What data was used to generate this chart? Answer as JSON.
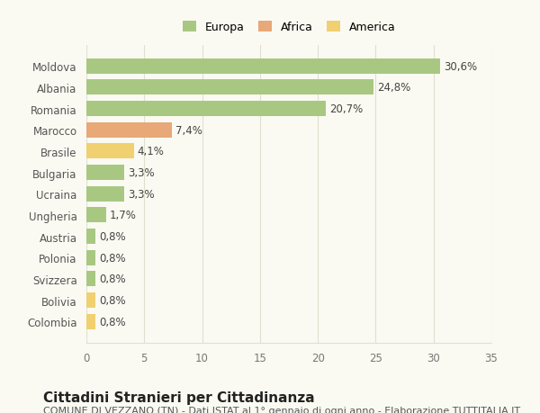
{
  "categories": [
    "Moldova",
    "Albania",
    "Romania",
    "Marocco",
    "Brasile",
    "Bulgaria",
    "Ucraina",
    "Ungheria",
    "Austria",
    "Polonia",
    "Svizzera",
    "Bolivia",
    "Colombia"
  ],
  "values": [
    30.6,
    24.8,
    20.7,
    7.4,
    4.1,
    3.3,
    3.3,
    1.7,
    0.8,
    0.8,
    0.8,
    0.8,
    0.8
  ],
  "labels": [
    "30,6%",
    "24,8%",
    "20,7%",
    "7,4%",
    "4,1%",
    "3,3%",
    "3,3%",
    "1,7%",
    "0,8%",
    "0,8%",
    "0,8%",
    "0,8%",
    "0,8%"
  ],
  "colors": [
    "#a8c882",
    "#a8c882",
    "#a8c882",
    "#e8a878",
    "#f0d070",
    "#a8c882",
    "#a8c882",
    "#a8c882",
    "#a8c882",
    "#a8c882",
    "#a8c882",
    "#f0d070",
    "#f0d070"
  ],
  "legend_labels": [
    "Europa",
    "Africa",
    "America"
  ],
  "legend_colors": [
    "#a8c882",
    "#e8a878",
    "#f0d070"
  ],
  "title": "Cittadini Stranieri per Cittadinanza",
  "subtitle": "COMUNE DI VEZZANO (TN) - Dati ISTAT al 1° gennaio di ogni anno - Elaborazione TUTTITALIA.IT",
  "xlim": [
    0,
    35
  ],
  "xticks": [
    0,
    5,
    10,
    15,
    20,
    25,
    30,
    35
  ],
  "bg_color": "#fafaf2",
  "grid_color": "#e0e0d0",
  "bar_height": 0.72,
  "label_fontsize": 8.5,
  "tick_fontsize": 8.5,
  "title_fontsize": 11,
  "subtitle_fontsize": 8
}
